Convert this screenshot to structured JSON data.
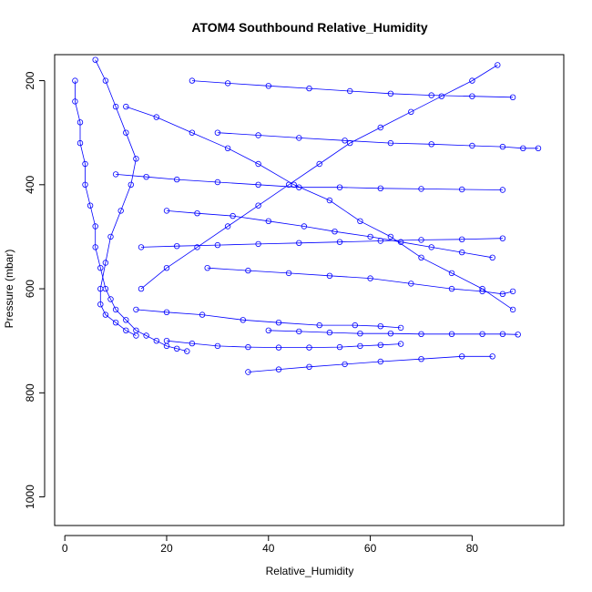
{
  "chart_data": {
    "type": "line",
    "title": "ATOM4 Southbound Relative_Humidity",
    "xlabel": "Relative_Humidity",
    "ylabel": "Pressure (mbar)",
    "xlim": [
      -2,
      98
    ],
    "ylim": [
      1055,
      150
    ],
    "y_reversed": true,
    "x_ticks": [
      0,
      20,
      40,
      60,
      80
    ],
    "y_ticks": [
      200,
      400,
      600,
      800,
      1000
    ],
    "grid": false,
    "legend": "none",
    "marker": "open-circle",
    "color": "#0000ff",
    "series": [
      {
        "x": [
          2,
          2,
          3,
          3,
          4,
          4,
          5,
          6,
          6,
          7,
          8,
          9,
          10,
          12,
          14,
          16,
          18,
          20,
          22,
          24
        ],
        "y": [
          200,
          240,
          280,
          320,
          360,
          400,
          440,
          480,
          520,
          560,
          600,
          620,
          640,
          660,
          680,
          690,
          700,
          710,
          715,
          720
        ]
      },
      {
        "x": [
          6,
          8,
          10,
          12,
          14,
          13,
          11,
          9,
          8,
          7,
          7,
          8,
          10,
          12,
          14
        ],
        "y": [
          160,
          200,
          250,
          300,
          350,
          400,
          450,
          500,
          550,
          600,
          630,
          650,
          665,
          680,
          690
        ]
      },
      {
        "x": [
          12,
          18,
          25,
          32,
          38,
          45,
          52,
          58,
          64,
          70,
          76,
          82,
          88
        ],
        "y": [
          250,
          270,
          300,
          330,
          360,
          400,
          430,
          470,
          500,
          540,
          570,
          600,
          640
        ]
      },
      {
        "x": [
          85,
          80,
          74,
          68,
          62,
          56,
          50,
          44,
          38,
          32,
          26,
          20,
          15
        ],
        "y": [
          170,
          200,
          230,
          260,
          290,
          320,
          360,
          400,
          440,
          480,
          520,
          560,
          600
        ]
      },
      {
        "x": [
          20,
          26,
          33,
          40,
          47,
          53,
          60,
          66,
          72,
          78,
          84
        ],
        "y": [
          450,
          455,
          460,
          470,
          480,
          490,
          500,
          510,
          520,
          530,
          540
        ]
      },
      {
        "x": [
          14,
          20,
          27,
          35,
          42,
          50,
          57,
          62,
          66
        ],
        "y": [
          640,
          645,
          650,
          660,
          665,
          670,
          670,
          672,
          675
        ]
      },
      {
        "x": [
          20,
          25,
          30,
          36,
          42,
          48,
          54,
          58,
          62,
          66
        ],
        "y": [
          700,
          705,
          710,
          712,
          713,
          713,
          712,
          710,
          708,
          706
        ]
      },
      {
        "x": [
          36,
          42,
          48,
          55,
          62,
          70,
          78,
          84
        ],
        "y": [
          760,
          755,
          750,
          745,
          740,
          735,
          730,
          730
        ]
      },
      {
        "x": [
          30,
          38,
          46,
          55,
          64,
          72,
          80,
          86,
          90,
          93
        ],
        "y": [
          300,
          305,
          310,
          315,
          320,
          322,
          325,
          327,
          330,
          330
        ]
      },
      {
        "x": [
          28,
          36,
          44,
          52,
          60,
          68,
          76,
          82,
          86,
          88
        ],
        "y": [
          560,
          565,
          570,
          575,
          580,
          590,
          600,
          605,
          610,
          605
        ]
      },
      {
        "x": [
          40,
          46,
          52,
          58,
          64,
          70,
          76,
          82,
          86,
          89
        ],
        "y": [
          680,
          682,
          684,
          686,
          686,
          687,
          687,
          687,
          687,
          688
        ]
      },
      {
        "x": [
          10,
          16,
          22,
          30,
          38,
          46,
          54,
          62,
          70,
          78,
          86
        ],
        "y": [
          380,
          385,
          390,
          395,
          400,
          405,
          405,
          407,
          408,
          409,
          410
        ]
      },
      {
        "x": [
          15,
          22,
          30,
          38,
          46,
          54,
          62,
          70,
          78,
          86
        ],
        "y": [
          520,
          518,
          516,
          514,
          512,
          510,
          508,
          506,
          505,
          503
        ]
      },
      {
        "x": [
          25,
          32,
          40,
          48,
          56,
          64,
          72,
          80,
          88
        ],
        "y": [
          200,
          205,
          210,
          215,
          220,
          225,
          228,
          230,
          232
        ]
      }
    ]
  }
}
